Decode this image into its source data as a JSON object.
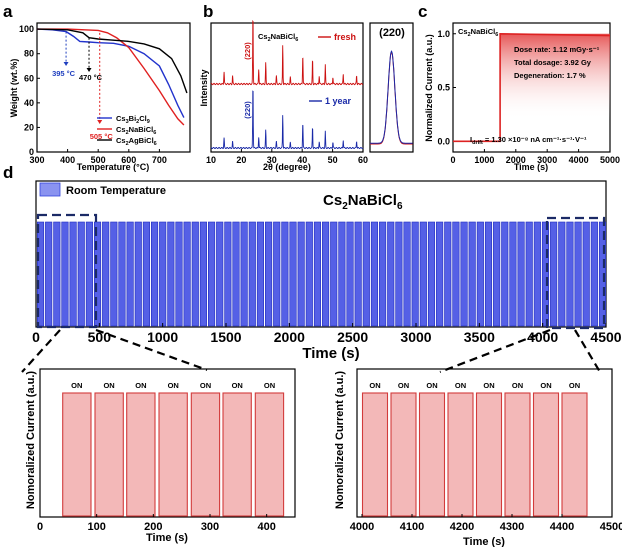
{
  "panel_labels": {
    "a": "a",
    "b": "b",
    "c": "c",
    "d": "d"
  },
  "chart_data": [
    {
      "panel": "a",
      "type": "line",
      "xlabel": "Temperature (°C)",
      "ylabel": "Weight (wt.%)",
      "xlim": [
        300,
        800
      ],
      "ylim": [
        0,
        105
      ],
      "xticks": [
        300,
        400,
        500,
        600,
        700
      ],
      "yticks": [
        0,
        20,
        40,
        60,
        80,
        100
      ],
      "annotations": [
        {
          "text": "395 °C",
          "x": 395,
          "color": "#1f3fbf"
        },
        {
          "text": "470 °C",
          "x": 470,
          "color": "#000000"
        },
        {
          "text": "505 °C",
          "x": 505,
          "color": "#e02020"
        }
      ],
      "series": [
        {
          "name": "Cs3Bi2Cl9",
          "label_main": "Cs",
          "sub1": "3",
          "mid": "Bi",
          "sub2": "2",
          "tail": "Cl",
          "sub3": "9",
          "color": "#2233cc",
          "x": [
            300,
            350,
            395,
            420,
            440,
            470,
            500,
            550,
            600,
            650,
            700,
            730,
            760,
            780
          ],
          "y": [
            100,
            99.5,
            98,
            94,
            90,
            89.5,
            89,
            88.5,
            86,
            80,
            70,
            55,
            38,
            28
          ]
        },
        {
          "name": "Cs2NaBiCl6",
          "label_main": "Cs",
          "sub1": "2",
          "mid": "NaBi",
          "sub2": "",
          "tail": "Cl",
          "sub3": "6",
          "color": "#e02020",
          "x": [
            300,
            400,
            500,
            530,
            560,
            600,
            650,
            700,
            730,
            760,
            780
          ],
          "y": [
            100,
            100,
            99,
            97,
            93,
            85,
            68,
            50,
            38,
            27,
            22
          ]
        },
        {
          "name": "Cs2AgBiCl6",
          "label_main": "Cs",
          "sub1": "2",
          "mid": "AgBi",
          "sub2": "",
          "tail": "Cl",
          "sub3": "6",
          "color": "#000000",
          "x": [
            300,
            400,
            450,
            470,
            500,
            550,
            600,
            650,
            700,
            740,
            770,
            790
          ],
          "y": [
            100,
            99.5,
            97,
            93,
            92,
            91,
            90,
            88,
            84,
            76,
            62,
            48
          ]
        }
      ]
    },
    {
      "panel": "b",
      "type": "line",
      "xlabel": "2θ (degree)",
      "ylabel": "Intensity",
      "xlim": [
        10,
        60
      ],
      "xticks": [
        10,
        20,
        30,
        40,
        50,
        60
      ],
      "title_main": "Cs",
      "title_sub1": "2",
      "title_mid": "NaBiCl",
      "title_sub2": "6",
      "peak_label": "(220)",
      "inset_title": "(220)",
      "series": [
        {
          "name": "fresh",
          "color": "#cc1111",
          "peaks": [
            [
              14.3,
              0.18
            ],
            [
              17.1,
              0.12
            ],
            [
              23.8,
              1.0
            ],
            [
              25.7,
              0.22
            ],
            [
              28.0,
              0.3
            ],
            [
              31.5,
              0.12
            ],
            [
              33.6,
              0.55
            ],
            [
              36.1,
              0.1
            ],
            [
              40.2,
              0.42
            ],
            [
              43.4,
              0.35
            ],
            [
              45.6,
              0.12
            ],
            [
              47.6,
              0.28
            ],
            [
              50.1,
              0.1
            ],
            [
              53.5,
              0.15
            ],
            [
              57.9,
              0.12
            ]
          ]
        },
        {
          "name": "1 year",
          "color": "#1a2aa8",
          "peaks": [
            [
              14.3,
              0.16
            ],
            [
              17.1,
              0.1
            ],
            [
              23.8,
              1.0
            ],
            [
              25.7,
              0.18
            ],
            [
              28.0,
              0.28
            ],
            [
              31.5,
              0.1
            ],
            [
              33.6,
              0.52
            ],
            [
              36.1,
              0.09
            ],
            [
              40.2,
              0.4
            ],
            [
              43.4,
              0.33
            ],
            [
              45.6,
              0.1
            ],
            [
              47.6,
              0.26
            ],
            [
              50.1,
              0.09
            ],
            [
              53.5,
              0.13
            ],
            [
              57.9,
              0.11
            ]
          ]
        }
      ]
    },
    {
      "panel": "c",
      "type": "line",
      "xlabel": "Time (s)",
      "ylabel": "Normalized Current (a.u.)",
      "xlim": [
        0,
        5000
      ],
      "ylim": [
        -0.1,
        1.1
      ],
      "xticks": [
        0,
        1000,
        2000,
        3000,
        4000,
        5000
      ],
      "yticks": [
        0.0,
        0.5,
        1.0
      ],
      "title_main": "Cs",
      "title_sub1": "2",
      "title_mid": "NaBiCl",
      "title_sub2": "6",
      "info": [
        "Dose rate: 1.12 mGy·s⁻¹",
        "Total dosage: 3.92 Gy",
        "Degeneration: 1.7 %"
      ],
      "drift_text": "I",
      "drift_sub": "drift",
      "drift_value": " = 1.30 ×10⁻⁸ nA cm⁻¹·s⁻¹·V⁻¹",
      "series": [
        {
          "name": "current",
          "color": "#dd2222",
          "x": [
            0,
            1500,
            1500,
            5000
          ],
          "y": [
            0,
            0,
            1.0,
            0.983
          ]
        }
      ]
    },
    {
      "panel": "d",
      "type": "area",
      "title_main": "Cs",
      "title_sub1": "2",
      "title_mid": "NaBiCl",
      "title_sub2": "6",
      "legend": "Room Temperature",
      "xlabel": "Time (s)",
      "xlim": [
        0,
        4500
      ],
      "xticks": [
        0,
        500,
        1000,
        1500,
        2000,
        2500,
        3000,
        3500,
        4000,
        4500
      ],
      "pulses": 70,
      "period_s": 64.3,
      "color": "#3344dd"
    },
    {
      "panel": "d-inset-left",
      "type": "area",
      "xlabel": "Time (s)",
      "ylabel": "Nomoralized Current (a.u.)",
      "xlim": [
        0,
        450
      ],
      "xticks": [
        0,
        100,
        200,
        300,
        400
      ],
      "pulse_starts": [
        40,
        97,
        153,
        210,
        267,
        323,
        380
      ],
      "pulse_width": 50,
      "pulse_labels": [
        "ON",
        "ON",
        "ON",
        "ON",
        "ON",
        "ON",
        "ON"
      ],
      "color": "#d23b3b"
    },
    {
      "panel": "d-inset-right",
      "type": "area",
      "xlabel": "Time (s)",
      "ylabel": "Nomoralized Current (a.u.)",
      "xlim": [
        3990,
        4500
      ],
      "xticks": [
        4000,
        4100,
        4200,
        4300,
        4400,
        4500
      ],
      "pulse_starts": [
        4001,
        4058,
        4115,
        4172,
        4229,
        4286,
        4343,
        4400
      ],
      "pulse_width": 50,
      "pulse_labels": [
        "ON",
        "ON",
        "ON",
        "ON",
        "ON",
        "ON",
        "ON",
        "ON"
      ],
      "color": "#d23b3b"
    }
  ]
}
